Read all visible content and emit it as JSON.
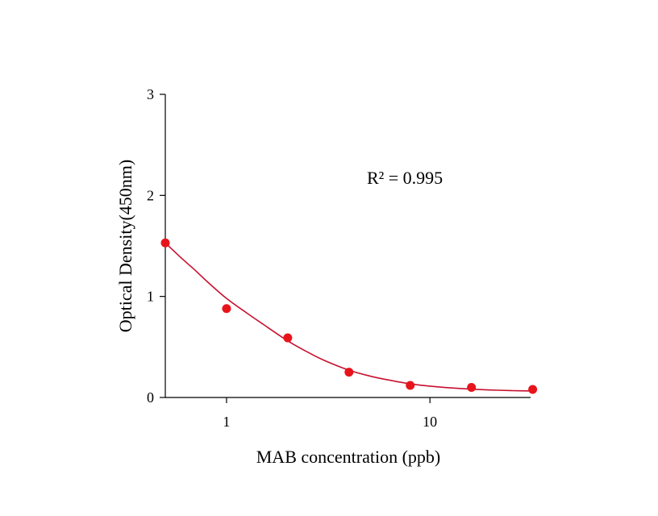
{
  "chart_data": {
    "type": "scatter",
    "title": "",
    "xlabel": "MAB concentration (ppb)",
    "ylabel": "Optical Density(450nm)",
    "x_scale": "log",
    "xlim": [
      0.5,
      31.25
    ],
    "ylim": [
      0,
      3
    ],
    "x_ticks": [
      {
        "value": 1,
        "label": "1"
      },
      {
        "value": 10,
        "label": "10"
      }
    ],
    "y_ticks": [
      {
        "value": 0,
        "label": "0"
      },
      {
        "value": 1,
        "label": "1"
      },
      {
        "value": 2,
        "label": "2"
      },
      {
        "value": 3,
        "label": "3"
      }
    ],
    "grid": false,
    "legend": "none",
    "series": [
      {
        "x": [
          0.5,
          1,
          2,
          4,
          8,
          16,
          32
        ],
        "y": [
          1.53,
          0.88,
          0.59,
          0.25,
          0.12,
          0.1,
          0.08
        ]
      }
    ],
    "fit_curve": {
      "x": [
        0.5,
        0.6,
        0.7,
        0.8,
        1,
        1.25,
        1.5,
        2,
        2.5,
        3,
        4,
        5,
        6,
        8,
        10,
        12,
        16,
        20,
        25,
        32
      ],
      "y": [
        1.53,
        1.38,
        1.26,
        1.15,
        0.98,
        0.84,
        0.73,
        0.56,
        0.45,
        0.37,
        0.27,
        0.215,
        0.18,
        0.135,
        0.112,
        0.098,
        0.082,
        0.074,
        0.068,
        0.064
      ]
    },
    "annotations": [
      {
        "text": "R² = 0.995"
      }
    ],
    "colors": {
      "points": "#e8141c",
      "curve": "#c8102e",
      "axis": "#000000"
    }
  }
}
